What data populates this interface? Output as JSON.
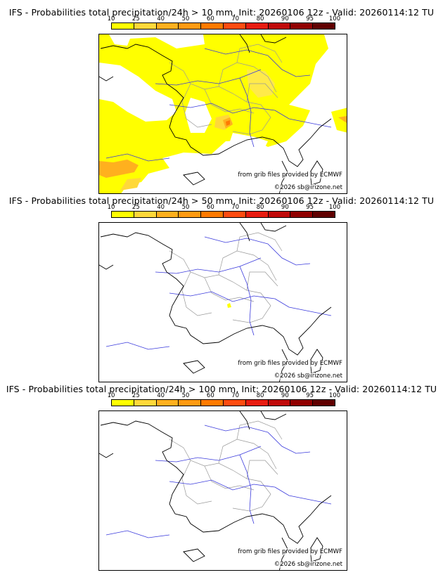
{
  "colorbar": {
    "labels": [
      "10",
      "25",
      "40",
      "50",
      "60",
      "70",
      "80",
      "90",
      "95",
      "100"
    ],
    "colors": [
      "#ffff00",
      "#ffd83a",
      "#ffb01e",
      "#ff9a12",
      "#ff7a00",
      "#ff4c10",
      "#e81c10",
      "#c00a0a",
      "#900000",
      "#600000"
    ]
  },
  "panels": [
    {
      "title": "IFS - Probabilities total precipitation/24h > 10 mm, Init: 20260106 12z - Valid: 20260114:12 TU",
      "credit1": "from grib files provided by ECMWF",
      "credit2": "©2026 sb@irizone.net"
    },
    {
      "title": "IFS - Probabilities total precipitation/24h > 50 mm, Init: 20260106 12z - Valid: 20260114:12 TU",
      "credit1": "from grib files provided by ECMWF",
      "credit2": "©2026 sb@irizone.net"
    },
    {
      "title": "IFS - Probabilities total precipitation/24h > 100 mm, Init: 20260106 12z - Valid: 20260114:12 TU",
      "credit1": "from grib files provided by ECMWF",
      "credit2": "©2026 sb@irizone.net"
    }
  ],
  "colors": {
    "coast": "#000000",
    "river": "#3a3adc",
    "border": "#999999",
    "yellow": "#ffff00",
    "pale": "#ffea4a",
    "orange": "#ffb01e",
    "deep": "#ff7a00"
  }
}
